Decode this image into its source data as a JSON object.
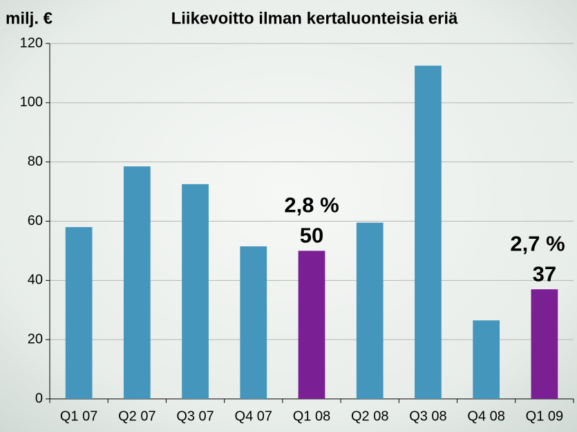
{
  "chart_data": {
    "type": "bar",
    "title": "Liikevoitto ilman kertaluonteisia eriä",
    "y_label": "milj. €",
    "categories": [
      "Q1 07",
      "Q2 07",
      "Q3 07",
      "Q4 07",
      "Q1 08",
      "Q2 08",
      "Q3 08",
      "Q4 08",
      "Q1 09"
    ],
    "values": [
      58,
      78.5,
      72.5,
      51.5,
      50,
      59.5,
      112.5,
      26.5,
      37
    ],
    "value_labels": [
      null,
      null,
      null,
      null,
      "50",
      null,
      null,
      null,
      "37"
    ],
    "colors": [
      "#4596bd",
      "#4596bd",
      "#4596bd",
      "#4596bd",
      "#7b1f94",
      "#4596bd",
      "#4596bd",
      "#4596bd",
      "#7b1f94"
    ],
    "annotations": [
      {
        "text": "2,8 %",
        "category": "Q1 08"
      },
      {
        "text": "2,7 %",
        "category": "Q1 09"
      }
    ],
    "ylim": [
      0,
      120
    ],
    "yticks": [
      0,
      20,
      40,
      60,
      80,
      100,
      120
    ],
    "grid": true
  }
}
